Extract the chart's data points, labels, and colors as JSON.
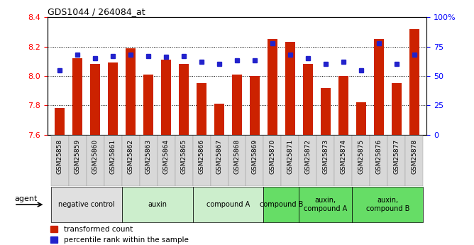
{
  "title": "GDS1044 / 264084_at",
  "samples": [
    "GSM25858",
    "GSM25859",
    "GSM25860",
    "GSM25861",
    "GSM25862",
    "GSM25863",
    "GSM25864",
    "GSM25865",
    "GSM25866",
    "GSM25867",
    "GSM25868",
    "GSM25869",
    "GSM25870",
    "GSM25871",
    "GSM25872",
    "GSM25873",
    "GSM25874",
    "GSM25875",
    "GSM25876",
    "GSM25877",
    "GSM25878"
  ],
  "bar_values": [
    7.78,
    8.12,
    8.08,
    8.09,
    8.19,
    8.01,
    8.11,
    8.08,
    7.95,
    7.81,
    8.01,
    8.0,
    8.25,
    8.23,
    8.08,
    7.92,
    8.0,
    7.82,
    8.25,
    7.95,
    8.32
  ],
  "percentile_values": [
    55,
    68,
    65,
    67,
    68,
    67,
    66,
    67,
    62,
    60,
    63,
    63,
    78,
    68,
    65,
    60,
    62,
    55,
    78,
    60,
    68
  ],
  "ylim_left": [
    7.6,
    8.4
  ],
  "ylim_right": [
    0,
    100
  ],
  "yticks_left": [
    7.6,
    7.8,
    8.0,
    8.2,
    8.4
  ],
  "yticks_right": [
    0,
    25,
    50,
    75,
    100
  ],
  "ytick_labels_right": [
    "0",
    "25",
    "50",
    "75",
    "100%"
  ],
  "bar_color": "#CC2200",
  "dot_color": "#2222CC",
  "groups": [
    {
      "label": "negative control",
      "start": 0,
      "end": 4,
      "color": "#e0e0e0"
    },
    {
      "label": "auxin",
      "start": 4,
      "end": 8,
      "color": "#cceecc"
    },
    {
      "label": "compound A",
      "start": 8,
      "end": 12,
      "color": "#cceecc"
    },
    {
      "label": "compound B",
      "start": 12,
      "end": 14,
      "color": "#66dd66"
    },
    {
      "label": "auxin,\ncompound A",
      "start": 14,
      "end": 17,
      "color": "#66dd66"
    },
    {
      "label": "auxin,\ncompound B",
      "start": 17,
      "end": 21,
      "color": "#66dd66"
    }
  ],
  "xlabel_agent": "agent",
  "legend_bar": "transformed count",
  "legend_dot": "percentile rank within the sample",
  "grid_color": "black",
  "background_color": "#ffffff",
  "n_samples": 21
}
